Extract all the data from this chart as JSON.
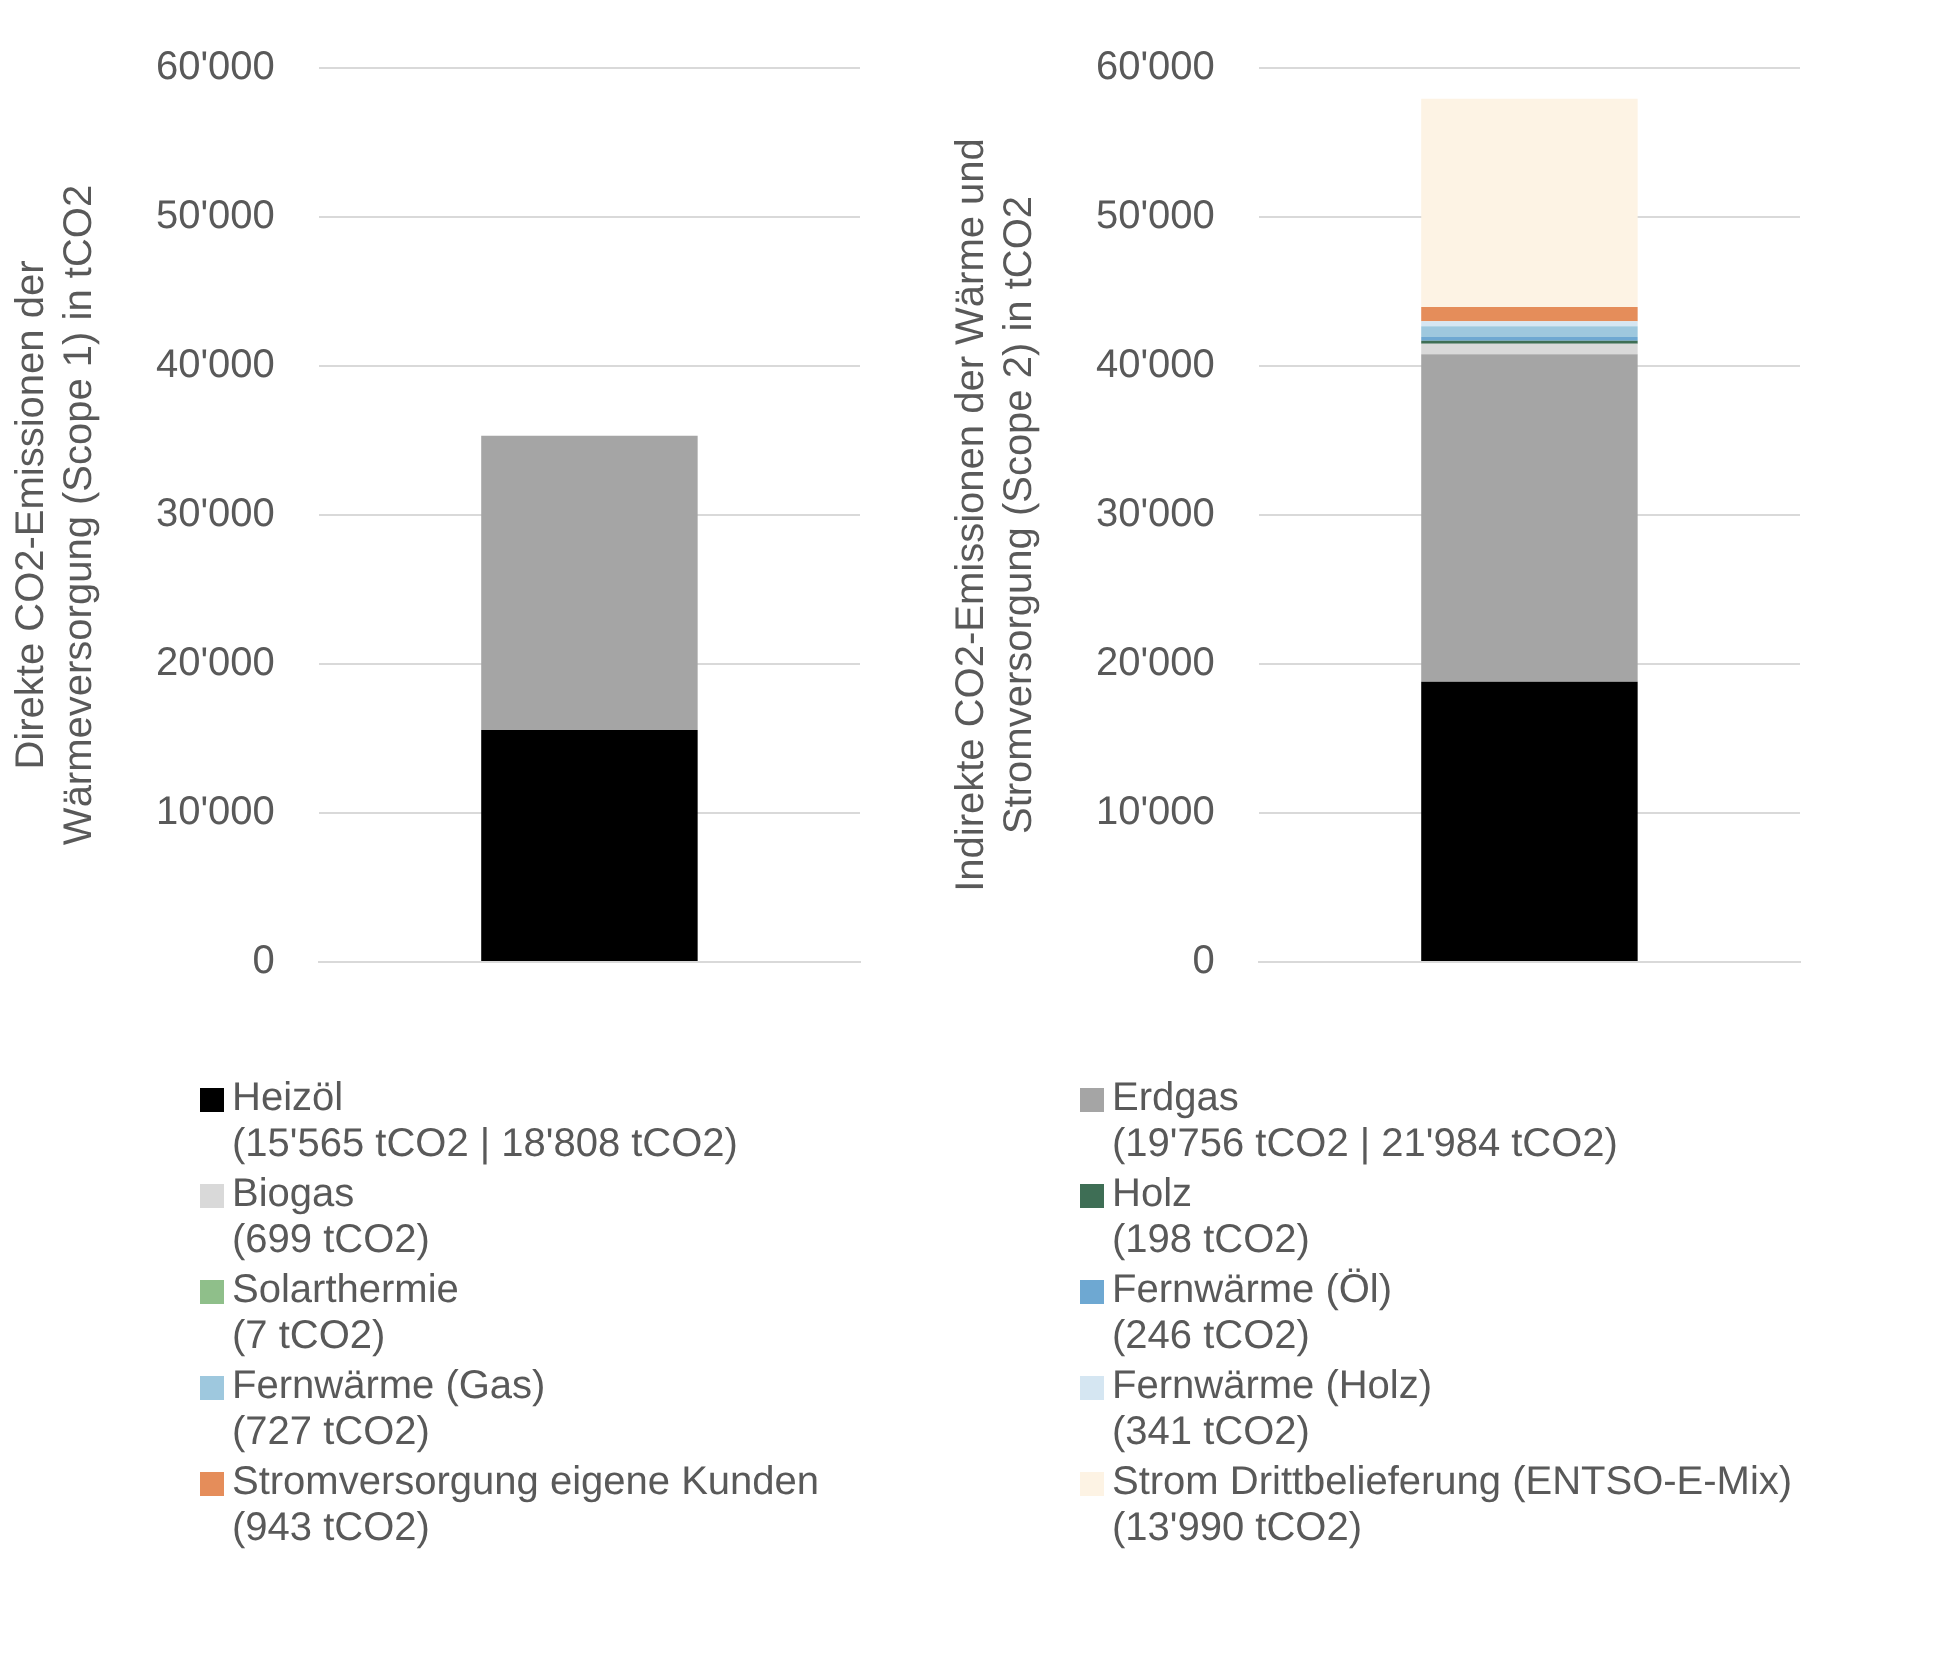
{
  "chart_data": [
    {
      "type": "bar",
      "stacked": true,
      "categories": [
        null
      ],
      "ylabel": "Direkte CO2-Emissionen der\nWärmeversorgung (Scope 1) in tCO2",
      "ylim": [
        0,
        60000
      ],
      "yticks": [
        {
          "value": 0,
          "label": "0"
        },
        {
          "value": 10000,
          "label": "10'000"
        },
        {
          "value": 20000,
          "label": "20'000"
        },
        {
          "value": 30000,
          "label": "30'000"
        },
        {
          "value": 40000,
          "label": "40'000"
        },
        {
          "value": 50000,
          "label": "50'000"
        },
        {
          "value": 60000,
          "label": "60'000"
        }
      ],
      "grid": "y",
      "tick_labels": "y",
      "series": [
        {
          "color": "#000000",
          "values": [
            15565
          ]
        },
        {
          "color": "#a5a5a5",
          "values": [
            19756
          ]
        }
      ]
    },
    {
      "type": "bar",
      "stacked": true,
      "categories": [
        null
      ],
      "ylabel": "Indirekte CO2-Emissionen der Wärme und\nStromversorgung (Scope 2) in tCO2",
      "ylim": [
        0,
        60000
      ],
      "yticks": [
        {
          "value": 0,
          "label": "0"
        },
        {
          "value": 10000,
          "label": "10'000"
        },
        {
          "value": 20000,
          "label": "20'000"
        },
        {
          "value": 30000,
          "label": "30'000"
        },
        {
          "value": 40000,
          "label": "40'000"
        },
        {
          "value": 50000,
          "label": "50'000"
        },
        {
          "value": 60000,
          "label": "60'000"
        }
      ],
      "grid": "y",
      "tick_labels": "y",
      "legend": "bottom",
      "series": [
        {
          "name": "Heizöl\n(15'565 tCO2 | 18'808 tCO2)",
          "color": "#000000",
          "values": [
            18808
          ]
        },
        {
          "name": "Erdgas\n(19'756 tCO2 | 21'984 tCO2)",
          "color": "#a5a5a5",
          "values": [
            21984
          ]
        },
        {
          "name": "Biogas\n(699 tCO2)",
          "color": "#d9d9d9",
          "values": [
            699
          ]
        },
        {
          "name": "Holz\n(198 tCO2)",
          "color": "#3e6e55",
          "values": [
            198
          ]
        },
        {
          "name": "Solarthermie\n(7 tCO2)",
          "color": "#8fbf8a",
          "values": [
            7
          ]
        },
        {
          "name": "Fernwärme (Öl)\n(246 tCO2)",
          "color": "#6ea8d2",
          "values": [
            246
          ]
        },
        {
          "name": "Fernwärme (Gas)\n(727 tCO2)",
          "color": "#9ec8de",
          "values": [
            727
          ]
        },
        {
          "name": "Fernwärme (Holz)\n(341 tCO2)",
          "color": "#d5e6f2",
          "values": [
            341
          ]
        },
        {
          "name": "Stromversorgung eigene Kunden\n(943 tCO2)",
          "color": "#e58d5a",
          "values": [
            943
          ]
        },
        {
          "name": "Strom Drittbelieferung (ENTSO-E-Mix)\n(13'990 tCO2)",
          "color": "#fdf3e4",
          "values": [
            13990
          ]
        }
      ]
    }
  ]
}
